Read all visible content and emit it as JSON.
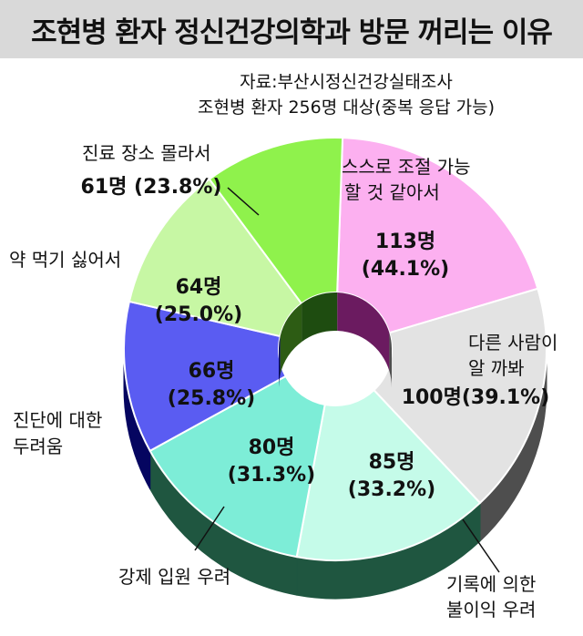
{
  "header": {
    "title": "조현병 환자 정신건강의학과 방문 꺼리는 이유",
    "source": "자료:부산시정신건강실태조사",
    "subtitle": "조현병 환자 256명 대상(중복 응답 가능)"
  },
  "chart_data": {
    "type": "pie",
    "variant": "donut-3d",
    "title": "조현병 환자 정신건강의학과 방문 꺼리는 이유",
    "total_respondents": 256,
    "multiple_response": true,
    "series": [
      {
        "name": "스스로 조절 가능 할 것 같아서",
        "count": 113,
        "percent": 44.1,
        "color": "#fcb0f0",
        "label_value": "113명",
        "label_percent": "(44.1%)"
      },
      {
        "name": "다른 사람이 알 까봐",
        "count": 100,
        "percent": 39.1,
        "color": "#e3e3e3",
        "label_value": "100명(39.1%)"
      },
      {
        "name": "기록에 의한 불이익 우려",
        "count": 85,
        "percent": 33.2,
        "color": "#c5fbe9",
        "label_value": "85명",
        "label_percent": "(33.2%)"
      },
      {
        "name": "강제 입원 우려",
        "count": 80,
        "percent": 31.3,
        "color": "#7dedd7",
        "label_value": "80명",
        "label_percent": "(31.3%)"
      },
      {
        "name": "진단에 대한 두려움",
        "count": 66,
        "percent": 25.8,
        "color": "#5a5cf2",
        "label_value": "66명",
        "label_percent": "(25.8%)"
      },
      {
        "name": "약 먹기 싫어서",
        "count": 64,
        "percent": 25.0,
        "color": "#c7f7a4",
        "label_value": "64명",
        "label_percent": "(25.0%)"
      },
      {
        "name": "진료 장소 몰라서",
        "count": 61,
        "percent": 23.8,
        "color": "#8ff24c",
        "label_value": "61명 (23.8%)"
      }
    ]
  },
  "labels": {
    "self_control": [
      "스스로 조절 가능",
      "할 것 같아서"
    ],
    "others_know": [
      "다른 사람이",
      "알 까봐"
    ],
    "record": [
      "기록에 의한",
      "불이익 우려"
    ],
    "forced": "강제 입원 우려",
    "diagnosis": [
      "진단에 대한",
      "두려움"
    ],
    "medicine": "약 먹기 싫어서",
    "location": "진료 장소 몰라서"
  },
  "colors": {
    "title_bg": "#d9d9d9",
    "side_pink": "#6b1b60",
    "side_gray": "#4e4e4e",
    "side_green": "#1f5640",
    "side_blue": "#050560",
    "side_lightgreen": "#2d5c14",
    "side_lime": "#1e4c10"
  }
}
